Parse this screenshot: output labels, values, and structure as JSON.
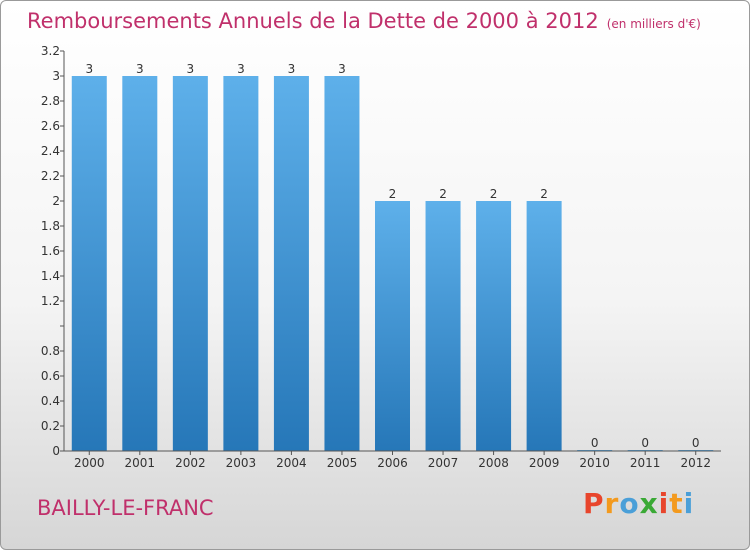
{
  "chart_data": {
    "type": "bar",
    "title": "Remboursements Annuels de la Dette de 2000 à 2012",
    "subtitle": "(en milliers d'€)",
    "categories": [
      "2000",
      "2001",
      "2002",
      "2003",
      "2004",
      "2005",
      "2006",
      "2007",
      "2008",
      "2009",
      "2010",
      "2011",
      "2012"
    ],
    "values": [
      3,
      3,
      3,
      3,
      3,
      3,
      2,
      2,
      2,
      2,
      0,
      0,
      0
    ],
    "data_labels": [
      "3",
      "3",
      "3",
      "3",
      "3",
      "3",
      "2",
      "2",
      "2",
      "2",
      "0",
      "0",
      "0"
    ],
    "ylim": [
      0,
      3.2
    ],
    "yticks": [
      0,
      0.2,
      0.4,
      0.6,
      0.8,
      1,
      1.2,
      1.4,
      1.6,
      1.8,
      2,
      2.2,
      2.4,
      2.6,
      2.8,
      3,
      3.2
    ],
    "ytick_labels": [
      "0",
      "0.2",
      "0.4",
      "0.6",
      "0.8",
      "",
      "1.2",
      "1.4",
      "1.6",
      "1.8",
      "2",
      "2.2",
      "2.4",
      "2.6",
      "2.8",
      "3",
      "3.2"
    ],
    "xlabel": "",
    "ylabel": "",
    "grid": false,
    "bar_color_top": "#5eb0ea",
    "bar_color_bottom": "#2677b8"
  },
  "commune": "BAILLY-LE-FRANC",
  "logo": {
    "letters": [
      "P",
      "r",
      "o",
      "x",
      "i",
      "t",
      "i"
    ],
    "colors": [
      "#e8452c",
      "#f39a1e",
      "#4a9fd8",
      "#3aa935",
      "#e8452c",
      "#f39a1e",
      "#4a9fd8"
    ]
  }
}
